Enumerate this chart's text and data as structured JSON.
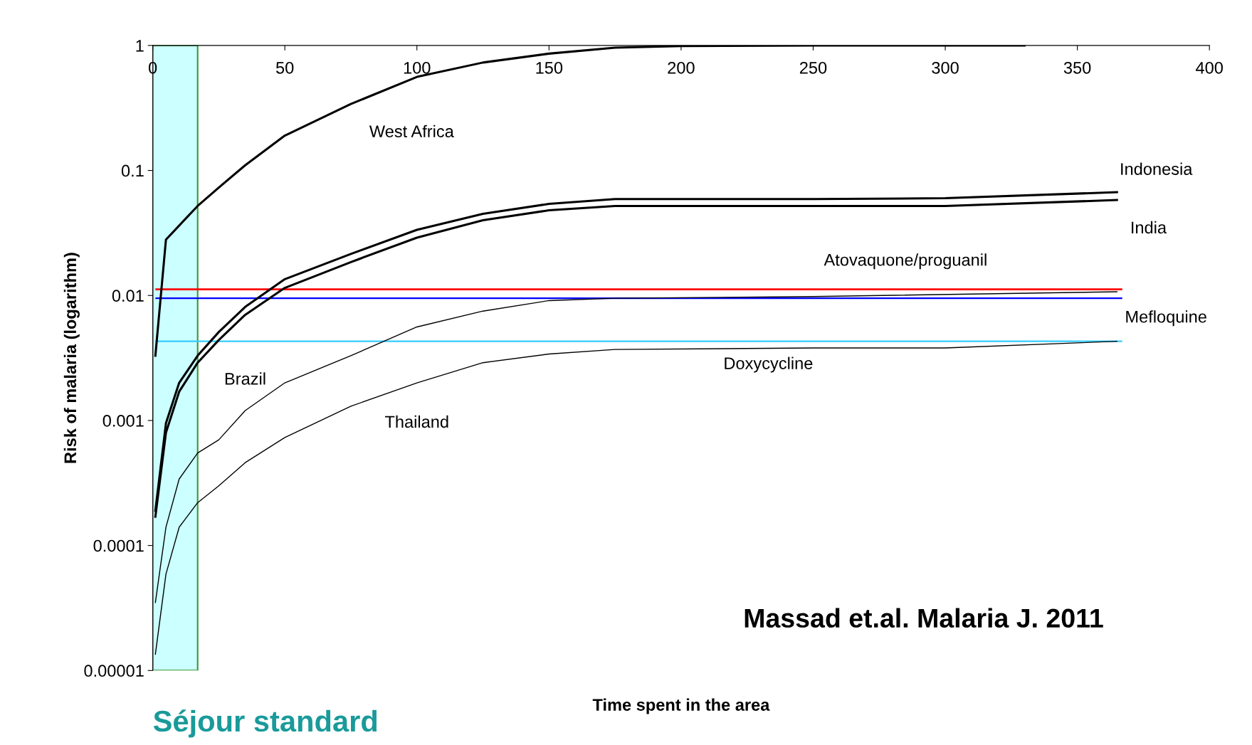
{
  "chart_data": {
    "type": "line",
    "xlabel": "Time spent in the area",
    "ylabel": "Risk of malaria (logarithm)",
    "log": "y",
    "grid": false,
    "legend": false,
    "xlim": [
      0,
      400
    ],
    "xticks": [
      0,
      50,
      100,
      150,
      200,
      250,
      300,
      350,
      400
    ],
    "ylim": [
      1e-05,
      1
    ],
    "yticks": [
      {
        "value": 1e-05,
        "label": "0.00001"
      },
      {
        "value": 0.0001,
        "label": "0.0001"
      },
      {
        "value": 0.001,
        "label": "0.001"
      },
      {
        "value": 0.01,
        "label": "0.01"
      },
      {
        "value": 0.1,
        "label": "0.1"
      },
      {
        "value": 1,
        "label": "1"
      }
    ],
    "series": [
      {
        "name": "West Africa",
        "color": "#000000",
        "x": [
          1,
          5,
          17,
          25,
          35,
          50,
          75,
          100,
          125,
          150,
          175,
          200,
          250,
          300,
          330
        ],
        "values": [
          0.0033,
          0.028,
          0.052,
          0.073,
          0.11,
          0.19,
          0.34,
          0.56,
          0.73,
          0.86,
          0.96,
          0.99,
          1.0,
          1.0,
          1.0
        ]
      },
      {
        "name": "Indonesia",
        "color": "#000000",
        "x": [
          1,
          5,
          10,
          17,
          25,
          35,
          50,
          75,
          100,
          125,
          150,
          175,
          250,
          300,
          365
        ],
        "values": [
          0.00019,
          0.00095,
          0.002,
          0.0033,
          0.0051,
          0.0081,
          0.0135,
          0.0215,
          0.0335,
          0.045,
          0.054,
          0.059,
          0.059,
          0.06,
          0.067
        ]
      },
      {
        "name": "India",
        "color": "#000000",
        "x": [
          1,
          5,
          10,
          17,
          25,
          35,
          50,
          75,
          100,
          125,
          150,
          175,
          250,
          300,
          365
        ],
        "values": [
          0.00017,
          0.0008,
          0.0017,
          0.0029,
          0.0044,
          0.007,
          0.0115,
          0.0185,
          0.029,
          0.04,
          0.048,
          0.052,
          0.052,
          0.052,
          0.058
        ]
      },
      {
        "name": "Brazil",
        "color": "#000000",
        "x": [
          1,
          5,
          10,
          17,
          25,
          35,
          50,
          75,
          100,
          125,
          150,
          175,
          250,
          365
        ],
        "values": [
          3.5e-05,
          0.00014,
          0.00034,
          0.00055,
          0.0007,
          0.0012,
          0.002,
          0.0033,
          0.0056,
          0.0075,
          0.0091,
          0.0095,
          0.0098,
          0.0107
        ]
      },
      {
        "name": "Thailand",
        "color": "#000000",
        "x": [
          1,
          5,
          10,
          17,
          25,
          35,
          50,
          75,
          100,
          125,
          150,
          175,
          250,
          300,
          365
        ],
        "values": [
          1.35e-05,
          5.9e-05,
          0.00014,
          0.00022,
          0.0003,
          0.00046,
          0.00073,
          0.0013,
          0.002,
          0.0029,
          0.0034,
          0.0037,
          0.0038,
          0.0038,
          0.0043
        ]
      }
    ],
    "ref_lines": [
      {
        "axis": "y",
        "value": 0.0112,
        "label": "Atovaquone/proguanil",
        "color": "#ff0000"
      },
      {
        "axis": "y",
        "value": 0.0095,
        "label": "Mefloquine",
        "color": "#0000ff"
      },
      {
        "axis": "y",
        "value": 0.0043,
        "label": "Doxycycline",
        "color": "#33ccff"
      }
    ],
    "bands": [
      {
        "axis": "x",
        "from": 0,
        "to": 17,
        "label": "Séjour standard",
        "color": "#ccffff"
      }
    ],
    "annotations": [
      "Massad et.al. Malaria J. 2011"
    ]
  }
}
